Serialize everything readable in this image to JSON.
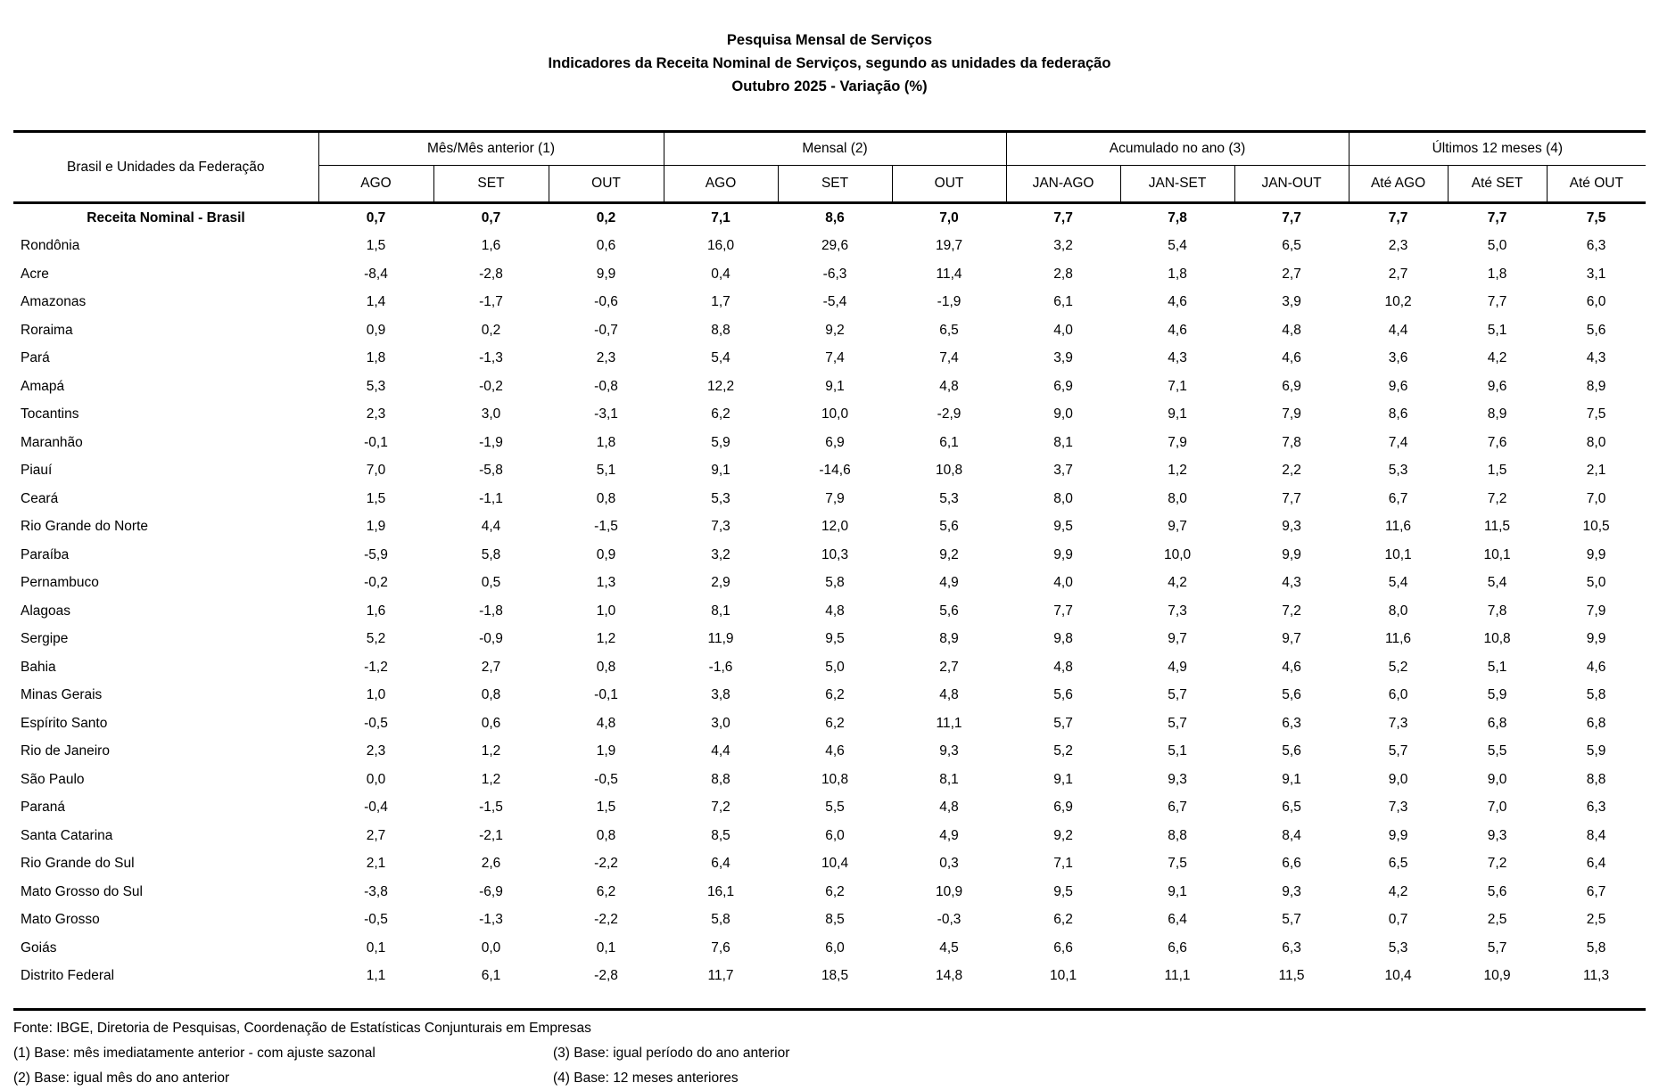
{
  "title": {
    "line1": "Pesquisa Mensal de Serviços",
    "line2": "Indicadores da Receita Nominal de Serviços, segundo as unidades da federação",
    "line3": "Outubro 2025 - Variação (%)"
  },
  "table": {
    "row_header": "Brasil e Unidades da Federação",
    "groups": [
      {
        "label": "Mês/Mês anterior (1)",
        "cols": [
          "AGO",
          "SET",
          "OUT"
        ]
      },
      {
        "label": "Mensal (2)",
        "cols": [
          "AGO",
          "SET",
          "OUT"
        ]
      },
      {
        "label": "Acumulado no ano (3)",
        "cols": [
          "JAN-AGO",
          "JAN-SET",
          "JAN-OUT"
        ]
      },
      {
        "label": "Últimos 12 meses (4)",
        "cols": [
          "Até AGO",
          "Até SET",
          "Até OUT"
        ]
      }
    ],
    "rows": [
      {
        "label": "Receita Nominal - Brasil",
        "bold": true,
        "values": [
          "0,7",
          "0,7",
          "0,2",
          "7,1",
          "8,6",
          "7,0",
          "7,7",
          "7,8",
          "7,7",
          "7,7",
          "7,7",
          "7,5"
        ]
      },
      {
        "label": "Rondônia",
        "values": [
          "1,5",
          "1,6",
          "0,6",
          "16,0",
          "29,6",
          "19,7",
          "3,2",
          "5,4",
          "6,5",
          "2,3",
          "5,0",
          "6,3"
        ]
      },
      {
        "label": "Acre",
        "values": [
          "-8,4",
          "-2,8",
          "9,9",
          "0,4",
          "-6,3",
          "11,4",
          "2,8",
          "1,8",
          "2,7",
          "2,7",
          "1,8",
          "3,1"
        ]
      },
      {
        "label": "Amazonas",
        "values": [
          "1,4",
          "-1,7",
          "-0,6",
          "1,7",
          "-5,4",
          "-1,9",
          "6,1",
          "4,6",
          "3,9",
          "10,2",
          "7,7",
          "6,0"
        ]
      },
      {
        "label": "Roraima",
        "values": [
          "0,9",
          "0,2",
          "-0,7",
          "8,8",
          "9,2",
          "6,5",
          "4,0",
          "4,6",
          "4,8",
          "4,4",
          "5,1",
          "5,6"
        ]
      },
      {
        "label": "Pará",
        "values": [
          "1,8",
          "-1,3",
          "2,3",
          "5,4",
          "7,4",
          "7,4",
          "3,9",
          "4,3",
          "4,6",
          "3,6",
          "4,2",
          "4,3"
        ]
      },
      {
        "label": "Amapá",
        "values": [
          "5,3",
          "-0,2",
          "-0,8",
          "12,2",
          "9,1",
          "4,8",
          "6,9",
          "7,1",
          "6,9",
          "9,6",
          "9,6",
          "8,9"
        ]
      },
      {
        "label": "Tocantins",
        "values": [
          "2,3",
          "3,0",
          "-3,1",
          "6,2",
          "10,0",
          "-2,9",
          "9,0",
          "9,1",
          "7,9",
          "8,6",
          "8,9",
          "7,5"
        ]
      },
      {
        "label": "Maranhão",
        "values": [
          "-0,1",
          "-1,9",
          "1,8",
          "5,9",
          "6,9",
          "6,1",
          "8,1",
          "7,9",
          "7,8",
          "7,4",
          "7,6",
          "8,0"
        ]
      },
      {
        "label": "Piauí",
        "values": [
          "7,0",
          "-5,8",
          "5,1",
          "9,1",
          "-14,6",
          "10,8",
          "3,7",
          "1,2",
          "2,2",
          "5,3",
          "1,5",
          "2,1"
        ]
      },
      {
        "label": "Ceará",
        "values": [
          "1,5",
          "-1,1",
          "0,8",
          "5,3",
          "7,9",
          "5,3",
          "8,0",
          "8,0",
          "7,7",
          "6,7",
          "7,2",
          "7,0"
        ]
      },
      {
        "label": "Rio Grande do Norte",
        "values": [
          "1,9",
          "4,4",
          "-1,5",
          "7,3",
          "12,0",
          "5,6",
          "9,5",
          "9,7",
          "9,3",
          "11,6",
          "11,5",
          "10,5"
        ]
      },
      {
        "label": "Paraíba",
        "values": [
          "-5,9",
          "5,8",
          "0,9",
          "3,2",
          "10,3",
          "9,2",
          "9,9",
          "10,0",
          "9,9",
          "10,1",
          "10,1",
          "9,9"
        ]
      },
      {
        "label": "Pernambuco",
        "values": [
          "-0,2",
          "0,5",
          "1,3",
          "2,9",
          "5,8",
          "4,9",
          "4,0",
          "4,2",
          "4,3",
          "5,4",
          "5,4",
          "5,0"
        ]
      },
      {
        "label": "Alagoas",
        "values": [
          "1,6",
          "-1,8",
          "1,0",
          "8,1",
          "4,8",
          "5,6",
          "7,7",
          "7,3",
          "7,2",
          "8,0",
          "7,8",
          "7,9"
        ]
      },
      {
        "label": "Sergipe",
        "values": [
          "5,2",
          "-0,9",
          "1,2",
          "11,9",
          "9,5",
          "8,9",
          "9,8",
          "9,7",
          "9,7",
          "11,6",
          "10,8",
          "9,9"
        ]
      },
      {
        "label": "Bahia",
        "values": [
          "-1,2",
          "2,7",
          "0,8",
          "-1,6",
          "5,0",
          "2,7",
          "4,8",
          "4,9",
          "4,6",
          "5,2",
          "5,1",
          "4,6"
        ]
      },
      {
        "label": "Minas Gerais",
        "values": [
          "1,0",
          "0,8",
          "-0,1",
          "3,8",
          "6,2",
          "4,8",
          "5,6",
          "5,7",
          "5,6",
          "6,0",
          "5,9",
          "5,8"
        ]
      },
      {
        "label": "Espírito Santo",
        "values": [
          "-0,5",
          "0,6",
          "4,8",
          "3,0",
          "6,2",
          "11,1",
          "5,7",
          "5,7",
          "6,3",
          "7,3",
          "6,8",
          "6,8"
        ]
      },
      {
        "label": "Rio de Janeiro",
        "values": [
          "2,3",
          "1,2",
          "1,9",
          "4,4",
          "4,6",
          "9,3",
          "5,2",
          "5,1",
          "5,6",
          "5,7",
          "5,5",
          "5,9"
        ]
      },
      {
        "label": "São Paulo",
        "values": [
          "0,0",
          "1,2",
          "-0,5",
          "8,8",
          "10,8",
          "8,1",
          "9,1",
          "9,3",
          "9,1",
          "9,0",
          "9,0",
          "8,8"
        ]
      },
      {
        "label": "Paraná",
        "values": [
          "-0,4",
          "-1,5",
          "1,5",
          "7,2",
          "5,5",
          "4,8",
          "6,9",
          "6,7",
          "6,5",
          "7,3",
          "7,0",
          "6,3"
        ]
      },
      {
        "label": "Santa Catarina",
        "values": [
          "2,7",
          "-2,1",
          "0,8",
          "8,5",
          "6,0",
          "4,9",
          "9,2",
          "8,8",
          "8,4",
          "9,9",
          "9,3",
          "8,4"
        ]
      },
      {
        "label": "Rio Grande do Sul",
        "values": [
          "2,1",
          "2,6",
          "-2,2",
          "6,4",
          "10,4",
          "0,3",
          "7,1",
          "7,5",
          "6,6",
          "6,5",
          "7,2",
          "6,4"
        ]
      },
      {
        "label": "Mato Grosso do Sul",
        "values": [
          "-3,8",
          "-6,9",
          "6,2",
          "16,1",
          "6,2",
          "10,9",
          "9,5",
          "9,1",
          "9,3",
          "4,2",
          "5,6",
          "6,7"
        ]
      },
      {
        "label": "Mato Grosso",
        "values": [
          "-0,5",
          "-1,3",
          "-2,2",
          "5,8",
          "8,5",
          "-0,3",
          "6,2",
          "6,4",
          "5,7",
          "0,7",
          "2,5",
          "2,5"
        ]
      },
      {
        "label": "Goiás",
        "values": [
          "0,1",
          "0,0",
          "0,1",
          "7,6",
          "6,0",
          "4,5",
          "6,6",
          "6,6",
          "6,3",
          "5,3",
          "5,7",
          "5,8"
        ]
      },
      {
        "label": "Distrito Federal",
        "values": [
          "1,1",
          "6,1",
          "-2,8",
          "11,7",
          "18,5",
          "14,8",
          "10,1",
          "11,1",
          "11,5",
          "10,4",
          "10,9",
          "11,3"
        ]
      }
    ]
  },
  "footer": {
    "source": "Fonte: IBGE, Diretoria de Pesquisas, Coordenação de Estatísticas Conjunturais em Empresas",
    "note1": "(1) Base: mês imediatamente anterior - com ajuste sazonal",
    "note2": "(2) Base: igual mês do ano anterior",
    "note3": "(3) Base: igual período do ano anterior",
    "note4": "(4) Base: 12 meses anteriores"
  }
}
